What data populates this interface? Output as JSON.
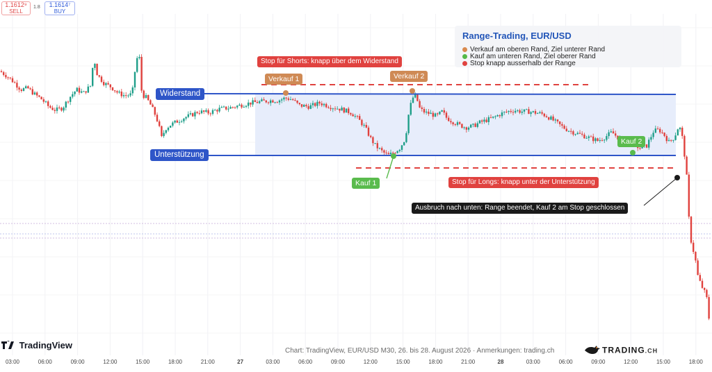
{
  "price_widget": {
    "sell_price": "1.1612⁹",
    "sell_label": "SELL",
    "spread": "1.8",
    "buy_price": "1.1614⁷",
    "buy_label": "BUY"
  },
  "legend": {
    "title": "Range-Trading, EUR/USD",
    "items": [
      {
        "label": "Verkauf am oberen Rand, Ziel unterer Rand",
        "color": "#d98a4e"
      },
      {
        "label": "Kauf am unteren Rand, Ziel oberer Rand",
        "color": "#54b948"
      },
      {
        "label": "Stop knapp ausserhalb der Range",
        "color": "#e0423f"
      }
    ]
  },
  "annotations": {
    "resistance_label": "Widerstand",
    "support_label": "Unterstützung",
    "short_stop_label": "Stop für Shorts: knapp über dem Widerstand",
    "long_stop_label": "Stop für Longs: knapp unter der Unterstützung",
    "sell1_label": "Verkauf 1",
    "sell2_label": "Verkauf 2",
    "buy1_label": "Kauf 1",
    "buy2_label": "Kauf 2",
    "breakout_label": "Ausbruch nach unten: Range beendet, Kauf 2 am Stop geschlossen"
  },
  "footer": {
    "logo_text": "TradingView",
    "caption": "Chart: TradingView, EUR/USD M30, 26. bis 28. August 2026 · Anmerkungen: trading.ch",
    "brand": "TRADING",
    "brand_suffix": ".CH"
  },
  "colors": {
    "up": "#1f9e89",
    "down": "#e0413d",
    "level_line": "#2e55c8",
    "range_fill": "#e7edfb",
    "stop_line": "#e0423f",
    "sell_marker": "#cf8a55",
    "buy_marker": "#5abb4d",
    "breakout_tag": "#1a1a1a"
  },
  "chart_data": {
    "type": "candlestick",
    "instrument": "EUR/USD",
    "timeframe": "M30",
    "x_ticks": [
      "03:00",
      "06:00",
      "09:00",
      "12:00",
      "15:00",
      "18:00",
      "21:00",
      "27",
      "03:00",
      "06:00",
      "09:00",
      "12:00",
      "15:00",
      "18:00",
      "21:00",
      "28",
      "03:00",
      "06:00",
      "09:00",
      "12:00",
      "15:00",
      "18:00"
    ],
    "day_ticks": [
      "27",
      "28"
    ],
    "range": {
      "resistance": 100,
      "support": 0,
      "short_stop": 116,
      "long_stop": -21
    },
    "close_path": [
      [
        0,
        138
      ],
      [
        10,
        130
      ],
      [
        20,
        120
      ],
      [
        30,
        108
      ],
      [
        40,
        110
      ],
      [
        50,
        100
      ],
      [
        60,
        92
      ],
      [
        70,
        80
      ],
      [
        80,
        74
      ],
      [
        90,
        78
      ],
      [
        100,
        95
      ],
      [
        110,
        108
      ],
      [
        120,
        102
      ],
      [
        130,
        114
      ],
      [
        135,
        160
      ],
      [
        140,
        132
      ],
      [
        150,
        118
      ],
      [
        160,
        112
      ],
      [
        170,
        102
      ],
      [
        180,
        98
      ],
      [
        190,
        100
      ],
      [
        196,
        156
      ],
      [
        200,
        166
      ],
      [
        204,
        100
      ],
      [
        210,
        95
      ],
      [
        216,
        84
      ],
      [
        222,
        70
      ],
      [
        228,
        52
      ],
      [
        232,
        28
      ],
      [
        238,
        44
      ],
      [
        245,
        50
      ],
      [
        255,
        56
      ],
      [
        265,
        62
      ],
      [
        275,
        66
      ],
      [
        285,
        72
      ],
      [
        300,
        70
      ],
      [
        315,
        76
      ],
      [
        330,
        78
      ],
      [
        345,
        82
      ],
      [
        360,
        86
      ],
      [
        375,
        88
      ],
      [
        390,
        90
      ],
      [
        400,
        90
      ],
      [
        410,
        94
      ],
      [
        420,
        92
      ],
      [
        430,
        82
      ],
      [
        445,
        80
      ],
      [
        460,
        86
      ],
      [
        475,
        80
      ],
      [
        490,
        76
      ],
      [
        505,
        70
      ],
      [
        515,
        60
      ],
      [
        525,
        46
      ],
      [
        533,
        28
      ],
      [
        540,
        16
      ],
      [
        550,
        6
      ],
      [
        558,
        0
      ],
      [
        565,
        4
      ],
      [
        575,
        12
      ],
      [
        583,
        28
      ],
      [
        588,
        70
      ],
      [
        593,
        94
      ],
      [
        598,
        98
      ],
      [
        604,
        76
      ],
      [
        612,
        70
      ],
      [
        620,
        68
      ],
      [
        628,
        64
      ],
      [
        636,
        72
      ],
      [
        642,
        62
      ],
      [
        650,
        56
      ],
      [
        660,
        50
      ],
      [
        670,
        46
      ],
      [
        680,
        48
      ],
      [
        690,
        54
      ],
      [
        700,
        58
      ],
      [
        710,
        62
      ],
      [
        720,
        68
      ],
      [
        730,
        72
      ],
      [
        740,
        74
      ],
      [
        750,
        72
      ],
      [
        760,
        72
      ],
      [
        770,
        70
      ],
      [
        780,
        68
      ],
      [
        790,
        62
      ],
      [
        800,
        54
      ],
      [
        810,
        46
      ],
      [
        820,
        40
      ],
      [
        830,
        36
      ],
      [
        840,
        32
      ],
      [
        850,
        28
      ],
      [
        860,
        24
      ],
      [
        870,
        30
      ],
      [
        880,
        38
      ],
      [
        890,
        28
      ],
      [
        900,
        26
      ],
      [
        912,
        18
      ],
      [
        920,
        12
      ],
      [
        930,
        16
      ],
      [
        940,
        40
      ],
      [
        948,
        42
      ],
      [
        955,
        34
      ],
      [
        962,
        22
      ],
      [
        970,
        30
      ],
      [
        976,
        48
      ],
      [
        980,
        40
      ],
      [
        985,
        -4
      ],
      [
        988,
        -40
      ],
      [
        992,
        -130
      ],
      [
        996,
        -150
      ],
      [
        1000,
        -170
      ],
      [
        1004,
        -200
      ],
      [
        1010,
        -216
      ],
      [
        1016,
        -230
      ],
      [
        1022,
        -290
      ]
    ],
    "markers": [
      {
        "name": "Verkauf 1",
        "type": "sell",
        "price": 100
      },
      {
        "name": "Verkauf 2",
        "type": "sell",
        "price": 104
      },
      {
        "name": "Kauf 1",
        "type": "buy",
        "price": 0
      },
      {
        "name": "Kauf 2",
        "type": "buy",
        "price": 2
      }
    ]
  }
}
